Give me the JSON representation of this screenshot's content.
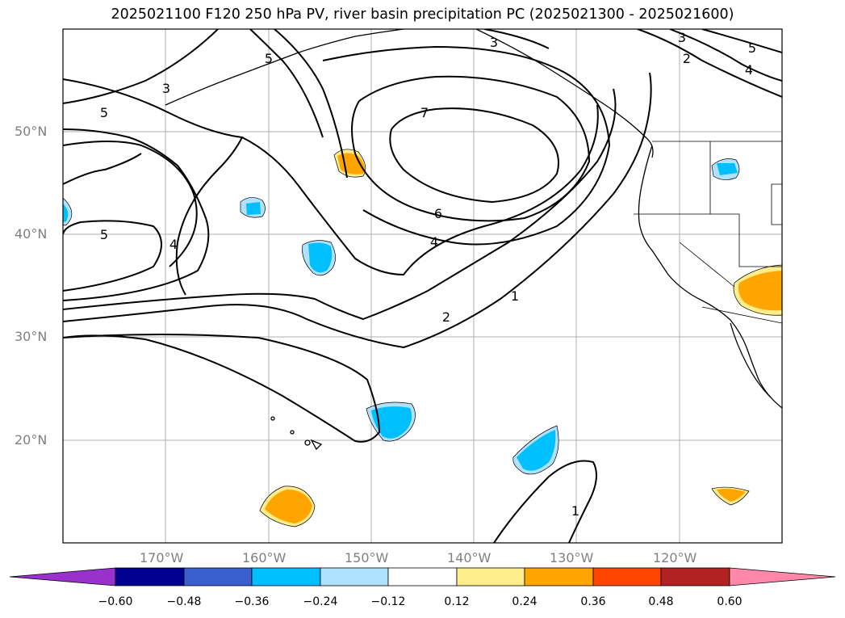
{
  "title": "2025021100 F120 250 hPa PV, river basin precipitation PC (2025021300 - 2025021600)",
  "map": {
    "projection": "equirectangular",
    "lon_range": [
      -180,
      -110
    ],
    "lat_range": [
      10,
      60
    ],
    "gridlines": true,
    "lat_labels": [
      "20°N",
      "30°N",
      "40°N",
      "50°N"
    ],
    "lon_labels": [
      "170°W",
      "160°W",
      "150°W",
      "140°W",
      "130°W",
      "120°W"
    ],
    "contour_variable": "250 hPa PV",
    "contour_labels": [
      "7",
      "6",
      "5",
      "5",
      "5",
      "5",
      "4",
      "4",
      "4",
      "3",
      "3",
      "3",
      "2",
      "2",
      "1",
      "1"
    ]
  },
  "colorbar": {
    "ticks": [
      "−0.60",
      "−0.48",
      "−0.36",
      "−0.24",
      "−0.12",
      "0.12",
      "0.24",
      "0.36",
      "0.48",
      "0.60"
    ],
    "colors": [
      "#9932cc",
      "#000090",
      "#3a5fcd",
      "#00bfff",
      "#b0e2ff",
      "#ffffff",
      "#ffec8b",
      "#ffa500",
      "#ff4500",
      "#b22222",
      "#ff88aa"
    ],
    "extend": "both"
  },
  "anomaly_colors": {
    "neg_light": "#b0e2ff",
    "neg": "#00bfff",
    "pos_light": "#ffec8b",
    "pos": "#ffa500"
  }
}
